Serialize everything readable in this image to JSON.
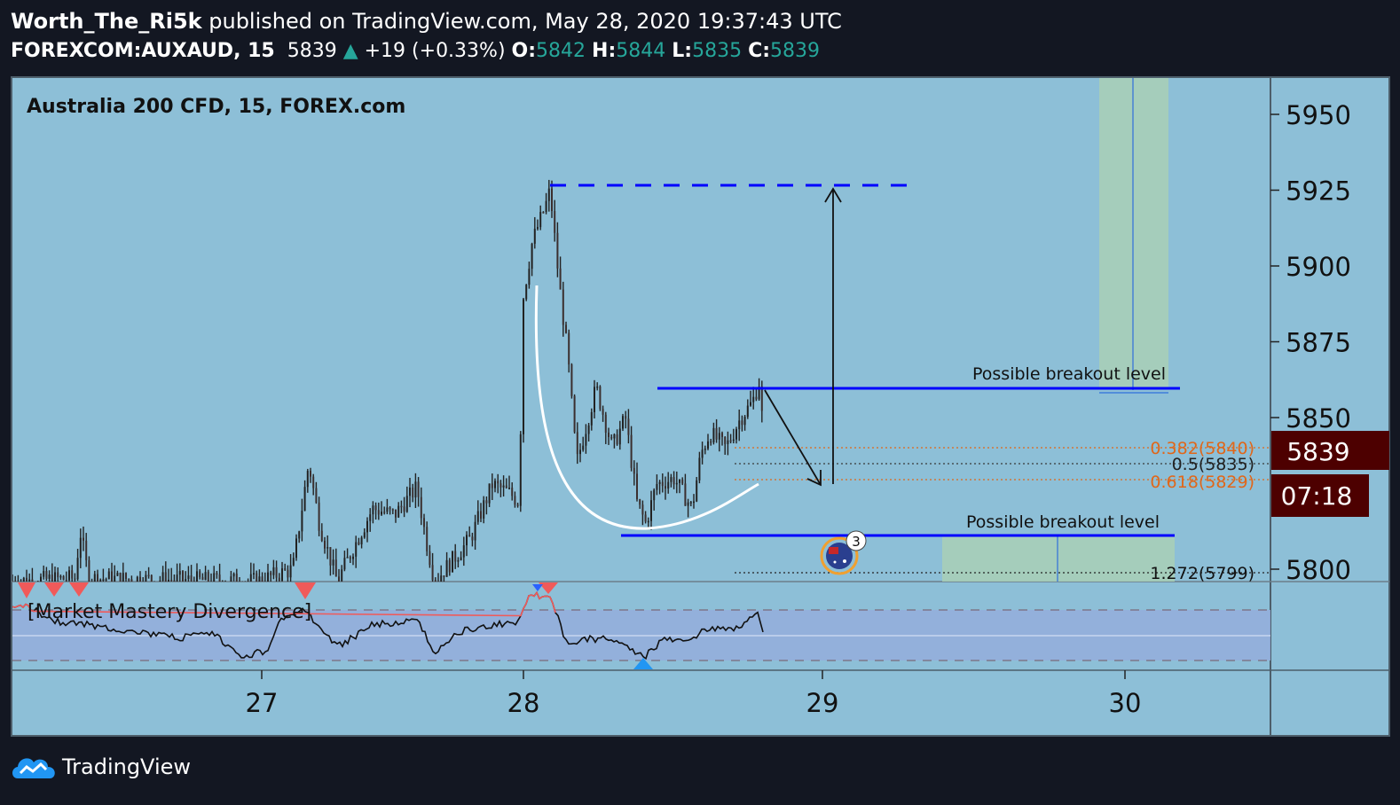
{
  "header": {
    "author": "Worth_The_Ri5k",
    "published_text": "published on TradingView.com, May 28, 2020 19:37:43 UTC",
    "symbol": "FOREXCOM:AUXAUD, 15",
    "last": "5839",
    "change": "+19 (+0.33%)",
    "o_label": "O:",
    "o": "5842",
    "h_label": "H:",
    "h": "5844",
    "l_label": "L:",
    "l": "5835",
    "c_label": "C:",
    "c": "5839"
  },
  "chart": {
    "title": "Australia 200 CFD, 15, FOREX.com",
    "price_badge": "5839",
    "countdown_badge": "07:18",
    "annotations": {
      "breakout_top": "Possible breakout level",
      "breakout_bottom": "Possible breakout level",
      "fib_382": "0.382(5840)",
      "fib_5": "0.5(5835)",
      "fib_618": "0.618(5829)",
      "fib_1272": "1.272(5799)",
      "event_count": "3"
    },
    "indicator_label": "[Market Mastery Divergence]"
  },
  "chart_data": {
    "type": "candlestick",
    "title": "Australia 200 CFD, 15, FOREX.com",
    "x_ticks": [
      "27",
      "28",
      "29",
      "30"
    ],
    "y_ticks": [
      5950,
      5925,
      5900,
      5875,
      5850,
      5800
    ],
    "ylim": [
      5796,
      5961
    ],
    "levels": {
      "possible_breakout_upper": 5860,
      "possible_breakout_lower": 5812,
      "target_high": 5927,
      "fib_0_382": 5840,
      "fib_0_5": 5835,
      "fib_0_618": 5829,
      "fib_1_272": 5799
    },
    "last_price": 5839,
    "colors": {
      "background": "#8dbfd7",
      "levels": "#0000ff",
      "fib": "#e0671a",
      "badge": "#4d0000"
    }
  },
  "footer": {
    "brand": "TradingView"
  }
}
